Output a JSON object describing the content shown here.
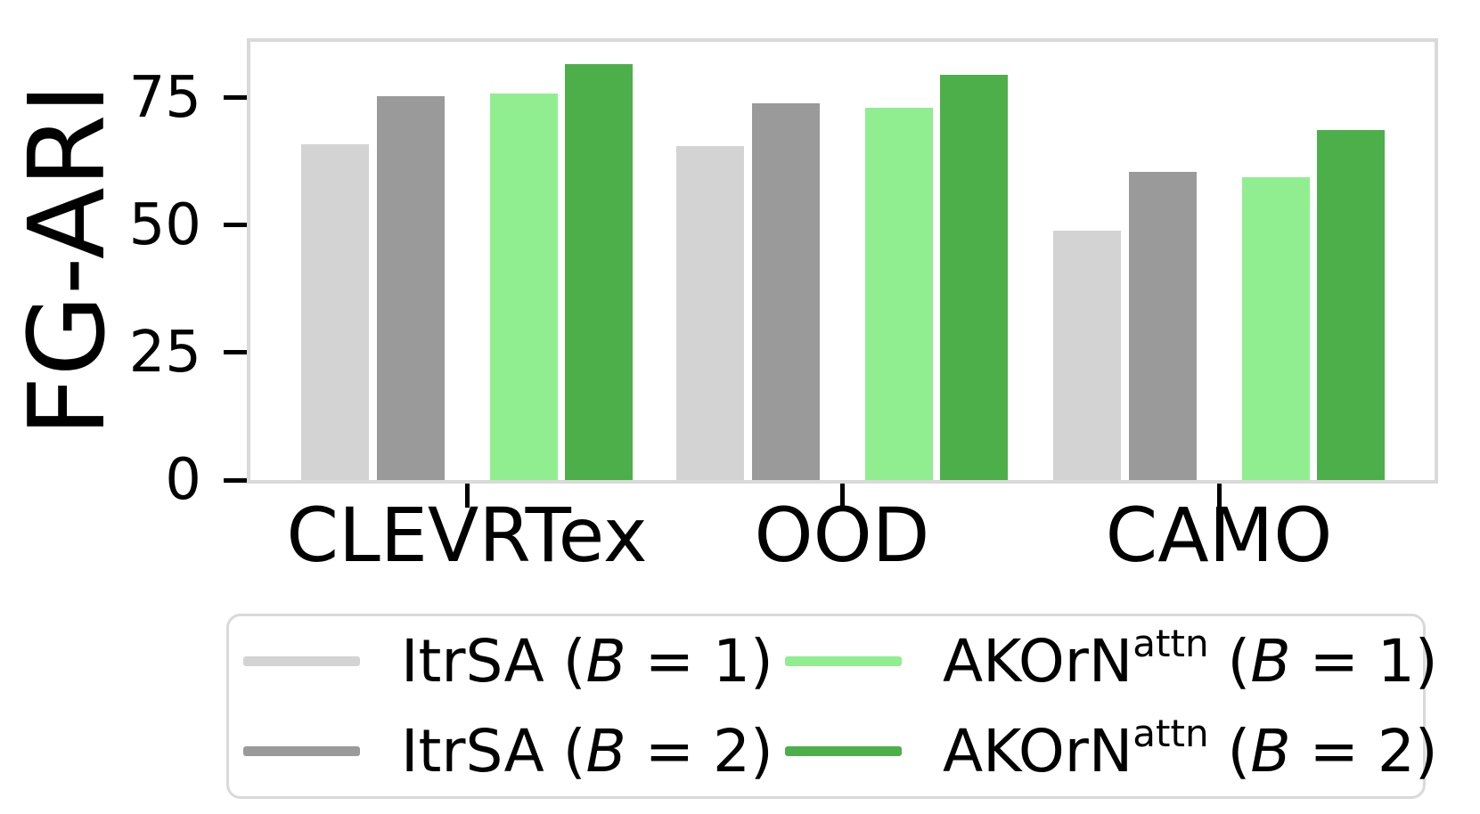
{
  "chart_data": {
    "type": "bar",
    "title": "",
    "xlabel": "",
    "ylabel": "FG-ARI",
    "categories": [
      "CLEVRTex",
      "OOD",
      "CAMO"
    ],
    "yticks": [
      0,
      25,
      50,
      75
    ],
    "ylim": [
      0,
      86
    ],
    "grid": false,
    "legend_position": "bottom-center",
    "series": [
      {
        "name": "ItrSA",
        "sup": "",
        "b_symbol": "B",
        "b_value": "1",
        "label": "ItrSA (B = 1)",
        "color": "#d3d3d3",
        "values": [
          65.9,
          65.6,
          48.9
        ]
      },
      {
        "name": "ItrSA",
        "sup": "",
        "b_symbol": "B",
        "b_value": "2",
        "label": "ItrSA (B = 2)",
        "color": "#9a9a9a",
        "values": [
          75.3,
          73.9,
          60.4
        ]
      },
      {
        "name": "AKOrN",
        "sup": "attn",
        "b_symbol": "B",
        "b_value": "1",
        "label": "AKOrN^attn (B = 1)",
        "color": "#90ee90",
        "values": [
          75.9,
          73.0,
          59.5
        ]
      },
      {
        "name": "AKOrN",
        "sup": "attn",
        "b_symbol": "B",
        "b_value": "2",
        "label": "AKOrN^attn (B = 2)",
        "color": "#4daf4a",
        "values": [
          81.6,
          79.6,
          68.7
        ]
      }
    ]
  },
  "legend": {
    "open": " (",
    "eq": " = ",
    "close": ")"
  },
  "axis": {
    "frame_color": "#d9d9d9",
    "tick_color": "#000000"
  }
}
